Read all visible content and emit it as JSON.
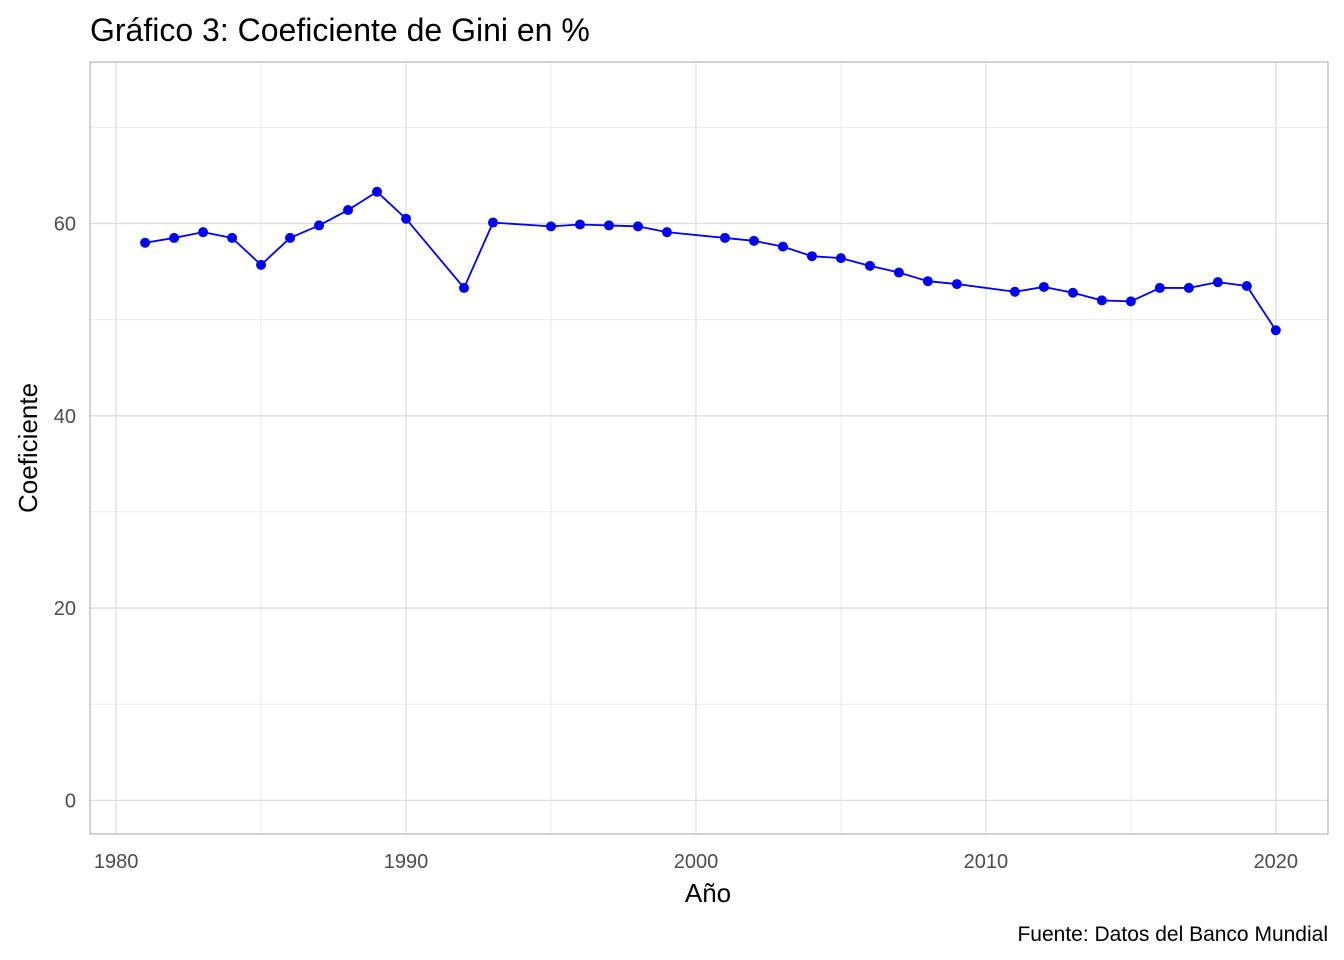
{
  "chart_data": {
    "type": "line",
    "title": "Gráfico 3: Coeficiente de Gini en %",
    "xlabel": "Año",
    "ylabel": "Coeficiente",
    "caption": "Fuente: Datos del Banco Mundial",
    "xlim": [
      1979.1,
      2021.8
    ],
    "ylim": [
      -3.5,
      76.8
    ],
    "xticks": [
      1980,
      1990,
      2000,
      2010,
      2020
    ],
    "yticks": [
      0,
      20,
      40,
      60
    ],
    "xticks_minor": [
      1985,
      1995,
      2005,
      2015
    ],
    "yticks_minor": [
      10,
      30,
      50,
      70
    ],
    "grid": true,
    "line_color": "#0000ff",
    "series": [
      {
        "x": [
          1981,
          1982,
          1983,
          1984,
          1985,
          1986,
          1987,
          1988,
          1989,
          1990,
          1992,
          1993,
          1995,
          1996,
          1997,
          1998,
          1999,
          2001,
          2002,
          2003,
          2004,
          2005,
          2006,
          2007,
          2008,
          2009,
          2011,
          2012,
          2013,
          2014,
          2015,
          2016,
          2017,
          2018,
          2019,
          2020
        ],
        "y": [
          58.0,
          58.5,
          59.1,
          58.5,
          55.7,
          58.5,
          59.8,
          61.4,
          63.3,
          60.5,
          53.3,
          60.1,
          59.7,
          59.9,
          59.8,
          59.7,
          59.1,
          58.5,
          58.2,
          57.6,
          56.6,
          56.4,
          55.6,
          54.9,
          54.0,
          53.7,
          52.9,
          53.4,
          52.8,
          52.0,
          51.9,
          53.3,
          53.3,
          53.9,
          53.5,
          48.9
        ]
      }
    ]
  }
}
